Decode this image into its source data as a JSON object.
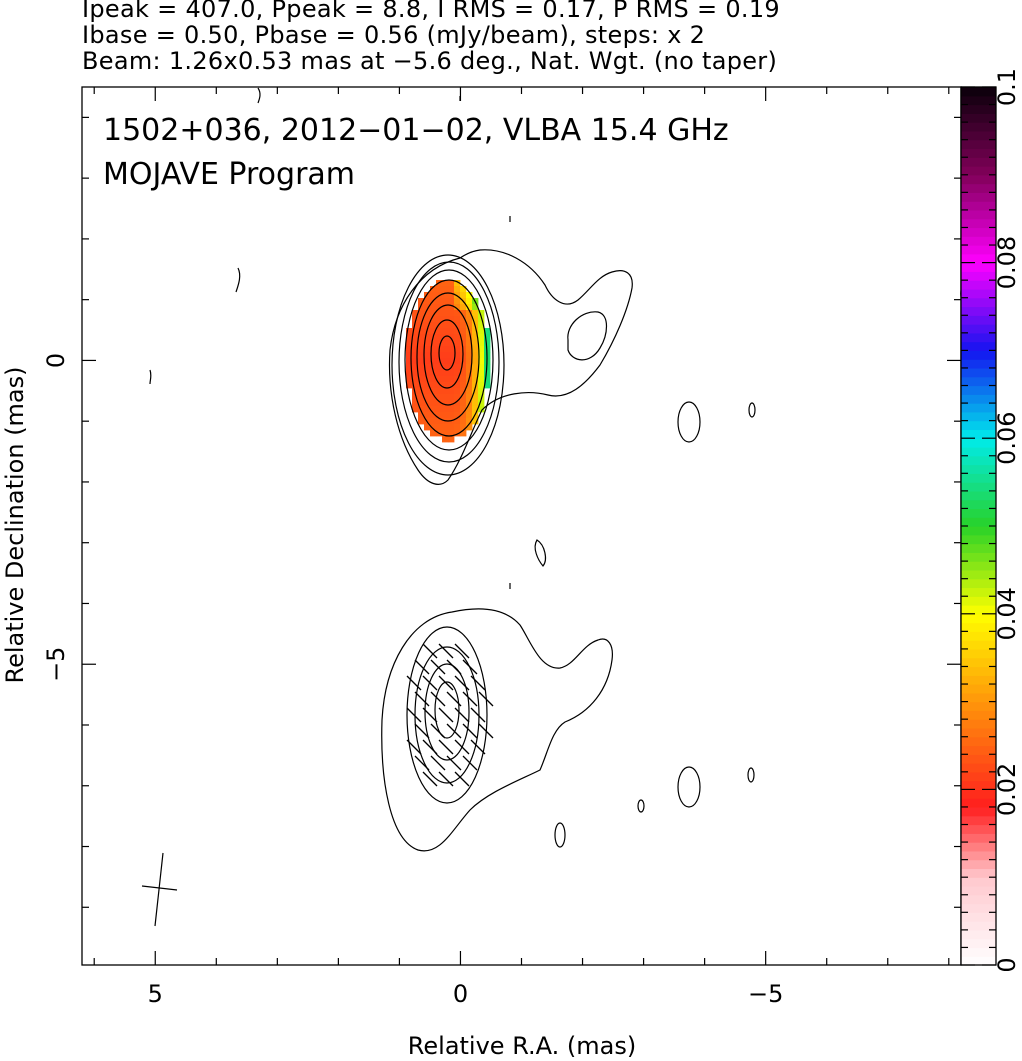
{
  "header": {
    "line1": "Ipeak = 407.0, Ppeak = 8.8, I RMS = 0.17, P RMS = 0.19",
    "line2": "Ibase = 0.50, Pbase = 0.56 (mJy/beam), steps: x 2",
    "line3": "Beam: 1.26x0.53 mas at −5.6 deg., Nat. Wgt. (no taper)"
  },
  "chart_data": {
    "type": "heatmap",
    "title": "1502+036, 2012−01−02, VLBA 15.4 GHz",
    "subtitle": "MOJAVE Program",
    "xlabel": "Relative R.A. (mas)",
    "ylabel": "Relative Declination (mas)",
    "xlim": [
      6.2,
      -8.2
    ],
    "ylim": [
      -9.95,
      4.5
    ],
    "x_ticks": [
      5,
      0,
      -5
    ],
    "x_tick_labels": [
      "5",
      "0",
      "−5"
    ],
    "y_ticks": [
      0,
      -5
    ],
    "y_tick_labels": [
      "0",
      "−5"
    ],
    "colorbar": {
      "min": 0,
      "max": 0.1,
      "ticks": [
        0,
        0.02,
        0.04,
        0.06,
        0.08,
        0.1
      ],
      "tick_labels": [
        "0",
        "0.02",
        "0.04",
        "0.06",
        "0.08",
        "0.1"
      ]
    },
    "contour_levels_mJy_per_beam": [
      0.5,
      1,
      2,
      4,
      8,
      16,
      32,
      64,
      128,
      256
    ],
    "panels": [
      {
        "name": "I contours with fractional polarization",
        "center_dec": 0
      },
      {
        "name": "I contours with EVPA ticks",
        "center_dec": -5.8
      }
    ],
    "beam": {
      "major_mas": 1.26,
      "minor_mas": 0.53,
      "pa_deg": -5.6
    }
  },
  "colors": {
    "axes": "#000000",
    "background": "#ffffff"
  }
}
